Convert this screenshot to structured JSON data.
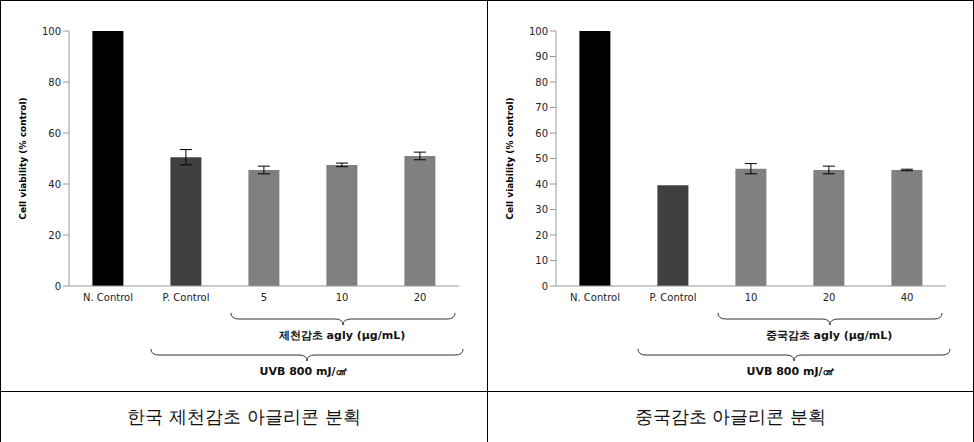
{
  "chart_data": [
    {
      "type": "bar",
      "title": "한국 제천감초 아글리콘 분획",
      "y_label": "Cell viability (% control)",
      "categories": [
        "N. Control",
        "P. Control",
        "5",
        "10",
        "20"
      ],
      "values": [
        100,
        50.5,
        45.5,
        47.5,
        51
      ],
      "errors": [
        0,
        3,
        1.5,
        0.7,
        1.5
      ],
      "colors": [
        "#000000",
        "#404040",
        "#808080",
        "#808080",
        "#808080"
      ],
      "ylim": [
        0,
        100
      ],
      "yticks": [
        0,
        20,
        40,
        60,
        80,
        100
      ],
      "grid": false,
      "annotations": [
        "제천감초 agly (μg/mL)",
        "UVB 800 mJ/㎠"
      ]
    },
    {
      "type": "bar",
      "title": "중국감초 아글리콘 분획",
      "y_label": "Cell viability (% control)",
      "categories": [
        "N. Control",
        "P. Control",
        "10",
        "20",
        "40"
      ],
      "values": [
        100,
        39.5,
        46,
        45.5,
        45.5
      ],
      "errors": [
        0,
        0,
        2,
        1.5,
        0.3
      ],
      "colors": [
        "#000000",
        "#404040",
        "#808080",
        "#808080",
        "#808080"
      ],
      "ylim": [
        0,
        100
      ],
      "yticks": [
        0,
        10,
        20,
        30,
        40,
        50,
        60,
        70,
        80,
        90,
        100
      ],
      "grid": false,
      "annotations": [
        "중국감초 agly (μg/mL)",
        "UVB 800 mJ/㎠"
      ]
    }
  ]
}
